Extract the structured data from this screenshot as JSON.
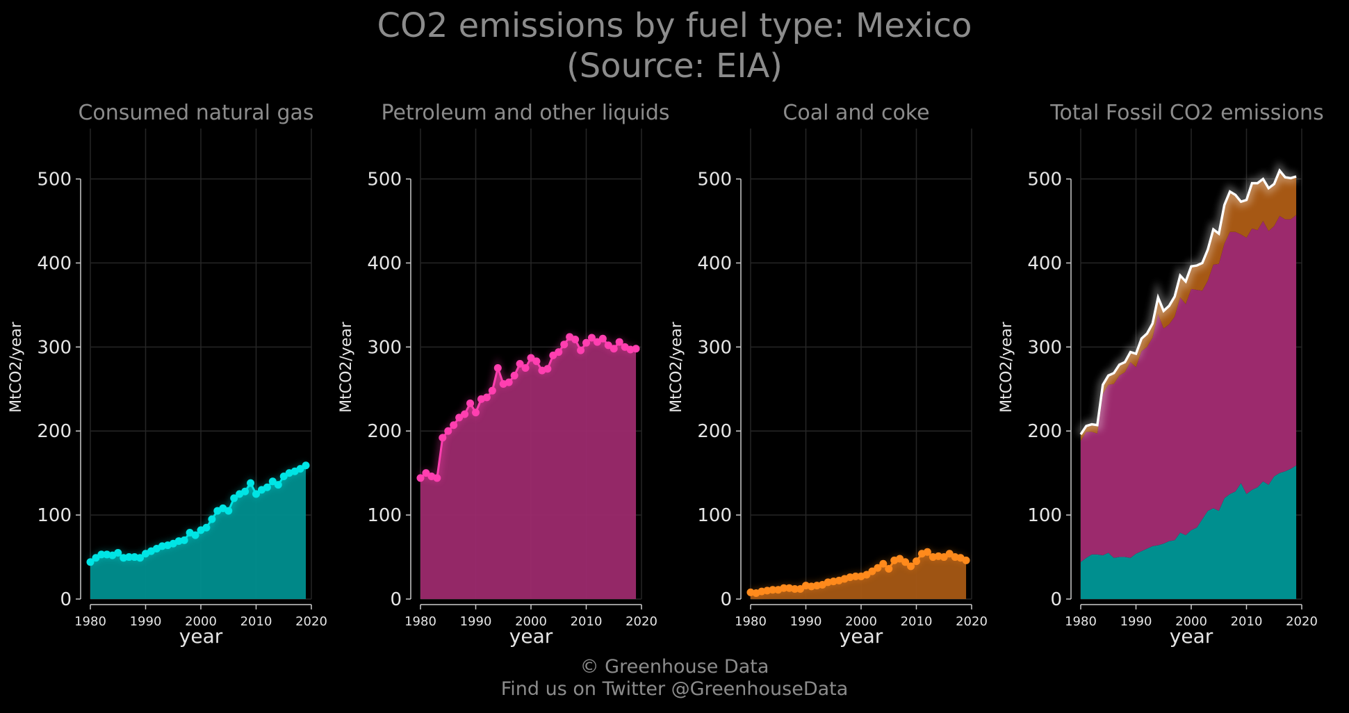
{
  "title": "CO2 emissions by fuel type: Mexico",
  "subtitle": "(Source: EIA)",
  "footer": {
    "copyright": "© Greenhouse Data",
    "twitter": "Find us on Twitter @GreenhouseData"
  },
  "colors": {
    "background": "#000000",
    "text_muted": "#8c8c8c",
    "axis_text": "#e6e6e6",
    "grid": "#262626",
    "natural_gas": "#00e5e5",
    "natural_gas_fill": "#008f8f",
    "petroleum": "#ff3fb0",
    "petroleum_fill": "#9c2a6d",
    "coal": "#ff8a1c",
    "coal_fill": "#a65814",
    "total_line": "#ffffff"
  },
  "chart_data": [
    {
      "type": "area",
      "title": "Consumed natural gas",
      "xlabel": "year",
      "ylabel": "MtCO2/year",
      "xlim": [
        1980,
        2020
      ],
      "ylim": [
        0,
        560
      ],
      "xticks": [
        1980,
        1990,
        2000,
        2010,
        2020
      ],
      "yticks": [
        0,
        100,
        200,
        300,
        400,
        500
      ],
      "grid": true,
      "color_key": "natural_gas",
      "x": [
        1980,
        1981,
        1982,
        1983,
        1984,
        1985,
        1986,
        1987,
        1988,
        1989,
        1990,
        1991,
        1992,
        1993,
        1994,
        1995,
        1996,
        1997,
        1998,
        1999,
        2000,
        2001,
        2002,
        2003,
        2004,
        2005,
        2006,
        2007,
        2008,
        2009,
        2010,
        2011,
        2012,
        2013,
        2014,
        2015,
        2016,
        2017,
        2018,
        2019
      ],
      "values": [
        44,
        49,
        53,
        53,
        52,
        55,
        49,
        50,
        50,
        49,
        54,
        57,
        60,
        63,
        64,
        66,
        69,
        70,
        79,
        76,
        82,
        85,
        95,
        105,
        108,
        105,
        120,
        125,
        128,
        138,
        125,
        130,
        133,
        140,
        136,
        146,
        150,
        152,
        155,
        159
      ]
    },
    {
      "type": "area",
      "title": "Petroleum and other liquids",
      "xlabel": "year",
      "ylabel": "MtCO2/year",
      "xlim": [
        1980,
        2020
      ],
      "ylim": [
        0,
        560
      ],
      "xticks": [
        1980,
        1990,
        2000,
        2010,
        2020
      ],
      "yticks": [
        0,
        100,
        200,
        300,
        400,
        500
      ],
      "grid": true,
      "color_key": "petroleum",
      "x": [
        1980,
        1981,
        1982,
        1983,
        1984,
        1985,
        1986,
        1987,
        1988,
        1989,
        1990,
        1991,
        1992,
        1993,
        1994,
        1995,
        1996,
        1997,
        1998,
        1999,
        2000,
        2001,
        2002,
        2003,
        2004,
        2005,
        2006,
        2007,
        2008,
        2009,
        2010,
        2011,
        2012,
        2013,
        2014,
        2015,
        2016,
        2017,
        2018,
        2019
      ],
      "values": [
        144,
        150,
        146,
        144,
        192,
        200,
        207,
        216,
        220,
        233,
        222,
        238,
        240,
        248,
        275,
        256,
        258,
        266,
        280,
        275,
        287,
        283,
        272,
        274,
        290,
        294,
        303,
        312,
        309,
        296,
        305,
        311,
        306,
        310,
        302,
        298,
        306,
        300,
        297,
        298
      ]
    },
    {
      "type": "area",
      "title": "Coal and coke",
      "xlabel": "year",
      "ylabel": "MtCO2/year",
      "xlim": [
        1980,
        2020
      ],
      "ylim": [
        0,
        560
      ],
      "xticks": [
        1980,
        1990,
        2000,
        2010,
        2020
      ],
      "yticks": [
        0,
        100,
        200,
        300,
        400,
        500
      ],
      "grid": true,
      "color_key": "coal",
      "x": [
        1980,
        1981,
        1982,
        1983,
        1984,
        1985,
        1986,
        1987,
        1988,
        1989,
        1990,
        1991,
        1992,
        1993,
        1994,
        1995,
        1996,
        1997,
        1998,
        1999,
        2000,
        2001,
        2002,
        2003,
        2004,
        2005,
        2006,
        2007,
        2008,
        2009,
        2010,
        2011,
        2012,
        2013,
        2014,
        2015,
        2016,
        2017,
        2018,
        2019
      ],
      "values": [
        8,
        7,
        9,
        10,
        11,
        11,
        13,
        13,
        12,
        12,
        16,
        15,
        16,
        17,
        20,
        21,
        22,
        24,
        26,
        27,
        27,
        29,
        33,
        37,
        42,
        36,
        46,
        48,
        44,
        39,
        45,
        54,
        56,
        50,
        51,
        50,
        54,
        50,
        49,
        46
      ]
    },
    {
      "type": "area",
      "title": "Total Fossil CO2 emissions",
      "xlabel": "year",
      "ylabel": "MtCO2/year",
      "xlim": [
        1980,
        2020
      ],
      "ylim": [
        0,
        560
      ],
      "xticks": [
        1980,
        1990,
        2000,
        2010,
        2020
      ],
      "yticks": [
        0,
        100,
        200,
        300,
        400,
        500
      ],
      "grid": true,
      "stacked": true,
      "x": [
        1980,
        1981,
        1982,
        1983,
        1984,
        1985,
        1986,
        1987,
        1988,
        1989,
        1990,
        1991,
        1992,
        1993,
        1994,
        1995,
        1996,
        1997,
        1998,
        1999,
        2000,
        2001,
        2002,
        2003,
        2004,
        2005,
        2006,
        2007,
        2008,
        2009,
        2010,
        2011,
        2012,
        2013,
        2014,
        2015,
        2016,
        2017,
        2018,
        2019
      ],
      "series": [
        {
          "color_key": "natural_gas",
          "values": [
            44,
            49,
            53,
            53,
            52,
            55,
            49,
            50,
            50,
            49,
            54,
            57,
            60,
            63,
            64,
            66,
            69,
            70,
            79,
            76,
            82,
            85,
            95,
            105,
            108,
            105,
            120,
            125,
            128,
            138,
            125,
            130,
            133,
            140,
            136,
            146,
            150,
            152,
            155,
            159
          ]
        },
        {
          "color_key": "petroleum",
          "values": [
            144,
            150,
            146,
            144,
            192,
            200,
            207,
            216,
            220,
            233,
            222,
            238,
            240,
            248,
            275,
            256,
            258,
            266,
            280,
            275,
            287,
            283,
            272,
            274,
            290,
            294,
            303,
            312,
            309,
            296,
            305,
            311,
            306,
            310,
            302,
            298,
            306,
            300,
            297,
            298
          ]
        },
        {
          "color_key": "coal",
          "values": [
            8,
            7,
            9,
            10,
            11,
            11,
            13,
            13,
            12,
            12,
            16,
            15,
            16,
            17,
            20,
            21,
            22,
            24,
            26,
            27,
            27,
            29,
            33,
            37,
            42,
            36,
            46,
            48,
            44,
            39,
            45,
            54,
            56,
            50,
            51,
            50,
            54,
            50,
            49,
            46
          ]
        }
      ],
      "total_color_key": "total_line"
    }
  ]
}
